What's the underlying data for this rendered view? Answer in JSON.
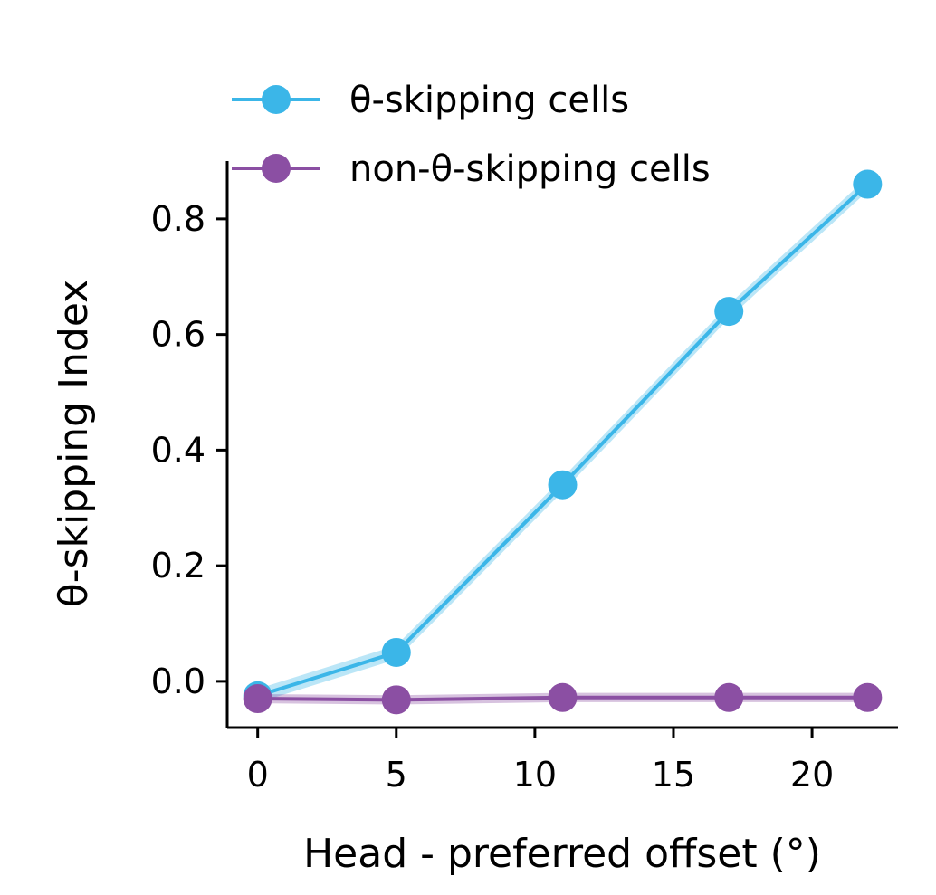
{
  "chart_data": {
    "type": "line",
    "title": "",
    "xlabel": "Head - preferred offset (°)",
    "ylabel": "θ-skipping Index",
    "x": [
      0,
      5,
      11,
      17,
      22
    ],
    "xlim": [
      -1.1,
      23.1
    ],
    "ylim": [
      -0.08,
      0.9
    ],
    "xticks": [
      0,
      5,
      10,
      15,
      20
    ],
    "yticks": [
      0.0,
      0.2,
      0.4,
      0.6,
      0.8
    ],
    "xtick_labels": [
      "0",
      "5",
      "10",
      "15",
      "20"
    ],
    "ytick_labels": [
      "0.0",
      "0.2",
      "0.4",
      "0.6",
      "0.8"
    ],
    "grid": false,
    "legend_position": "top-left",
    "series": [
      {
        "name": "θ-skipping cells",
        "color": "#3BB6E8",
        "values": [
          -0.025,
          0.05,
          0.34,
          0.64,
          0.86
        ],
        "band": 0.012
      },
      {
        "name": "non-θ-skipping cells",
        "color": "#8B4FA3",
        "values": [
          -0.03,
          -0.032,
          -0.028,
          -0.028,
          -0.028
        ],
        "band": 0.008
      }
    ]
  }
}
